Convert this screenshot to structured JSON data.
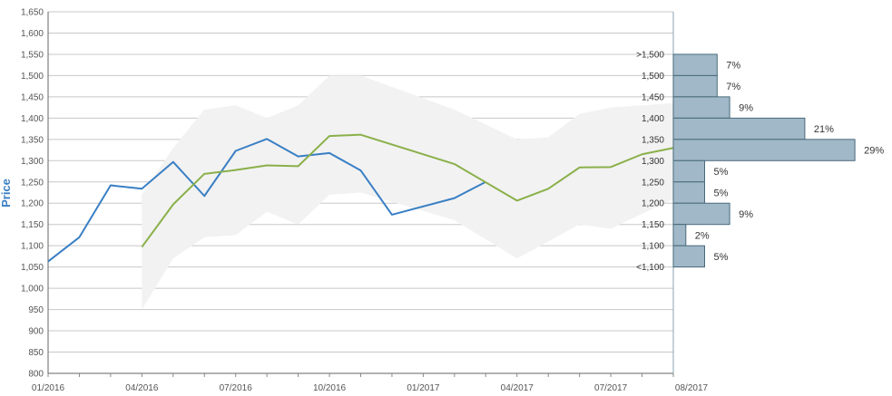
{
  "chart_data": {
    "type": "line",
    "ylabel": "Price",
    "ylim": [
      800,
      1650
    ],
    "yticks": [
      800,
      850,
      900,
      950,
      1000,
      1050,
      1100,
      1150,
      1200,
      1250,
      1300,
      1350,
      1400,
      1450,
      1500,
      1550,
      1600,
      1650
    ],
    "ytick_labels": [
      "800",
      "850",
      "900",
      "950",
      "1,000",
      "1,050",
      "1,100",
      "1,150",
      "1,200",
      "1,250",
      "1,300",
      "1,350",
      "1,400",
      "1,450",
      "1,500",
      "1,550",
      "1,600",
      "1,650"
    ],
    "xlim": [
      0,
      20
    ],
    "xticks": [
      0,
      3,
      6,
      9,
      12,
      15,
      18,
      20
    ],
    "xtick_labels": [
      "01/2016",
      "04/2016",
      "07/2016",
      "10/2016",
      "01/2017",
      "04/2017",
      "07/2017",
      "08/2017"
    ],
    "grid": true,
    "series": [
      {
        "key": "actual",
        "color": "#3a7fc4",
        "points": [
          [
            0,
            1063
          ],
          [
            1,
            1120
          ],
          [
            2,
            1242
          ],
          [
            3,
            1234
          ],
          [
            4,
            1297
          ],
          [
            5,
            1217
          ],
          [
            6,
            1323
          ],
          [
            7,
            1351
          ],
          [
            8,
            1310
          ],
          [
            9,
            1318
          ],
          [
            10,
            1277
          ],
          [
            11,
            1173
          ],
          [
            13,
            1212
          ],
          [
            14,
            1250
          ]
        ]
      },
      {
        "key": "forecast",
        "color": "#8ab04a",
        "points": [
          [
            3,
            1097
          ],
          [
            4,
            1197
          ],
          [
            5,
            1269
          ],
          [
            6,
            1278
          ],
          [
            7,
            1289
          ],
          [
            8,
            1287
          ],
          [
            9,
            1358
          ],
          [
            10,
            1361
          ],
          [
            13,
            1292
          ],
          [
            15,
            1206
          ],
          [
            16,
            1234
          ],
          [
            17,
            1284
          ],
          [
            18,
            1285
          ],
          [
            19,
            1315
          ],
          [
            20,
            1330
          ]
        ]
      }
    ],
    "band": {
      "color": "#f2f2f2",
      "upper": [
        [
          3,
          1220
        ],
        [
          4,
          1330
        ],
        [
          5,
          1420
        ],
        [
          6,
          1430
        ],
        [
          7,
          1400
        ],
        [
          8,
          1430
        ],
        [
          9,
          1500
        ],
        [
          10,
          1500
        ],
        [
          13,
          1420
        ],
        [
          15,
          1350
        ],
        [
          16,
          1355
        ],
        [
          17,
          1410
        ],
        [
          18,
          1425
        ],
        [
          20,
          1435
        ]
      ],
      "lower": [
        [
          3,
          950
        ],
        [
          4,
          1070
        ],
        [
          5,
          1120
        ],
        [
          6,
          1125
        ],
        [
          7,
          1180
        ],
        [
          8,
          1150
        ],
        [
          9,
          1220
        ],
        [
          10,
          1225
        ],
        [
          13,
          1160
        ],
        [
          15,
          1070
        ],
        [
          16,
          1110
        ],
        [
          17,
          1150
        ],
        [
          18,
          1140
        ],
        [
          20,
          1210
        ]
      ]
    },
    "histogram": {
      "color": "#a0b8c8",
      "bins": [
        {
          "label": ">1,500",
          "from": 1500,
          "to": 1550,
          "percent": 7,
          "percent_label": "7%"
        },
        {
          "label": "1,500",
          "from": 1450,
          "to": 1500,
          "percent": 7,
          "percent_label": "7%"
        },
        {
          "label": "1,450",
          "from": 1400,
          "to": 1450,
          "percent": 9,
          "percent_label": "9%"
        },
        {
          "label": "1,400",
          "from": 1350,
          "to": 1400,
          "percent": 21,
          "percent_label": "21%"
        },
        {
          "label": "1,350",
          "from": 1300,
          "to": 1350,
          "percent": 29,
          "percent_label": "29%"
        },
        {
          "label": "1,300",
          "from": 1250,
          "to": 1300,
          "percent": 5,
          "percent_label": "5%"
        },
        {
          "label": "1,250",
          "from": 1200,
          "to": 1250,
          "percent": 5,
          "percent_label": "5%"
        },
        {
          "label": "1,200",
          "from": 1150,
          "to": 1200,
          "percent": 9,
          "percent_label": "9%"
        },
        {
          "label": "1,150",
          "from": 1100,
          "to": 1150,
          "percent": 2,
          "percent_label": "2%"
        },
        {
          "label": "1,100",
          "from": 1050,
          "to": 1100,
          "percent": 5,
          "percent_label": "5%"
        },
        {
          "label": "<1,100",
          "from": null,
          "to": null,
          "percent": null,
          "percent_label": ""
        }
      ]
    }
  }
}
